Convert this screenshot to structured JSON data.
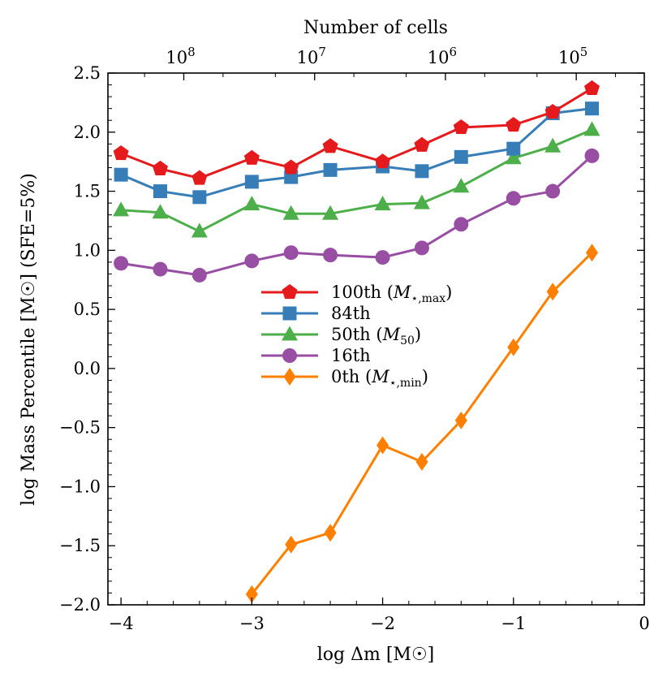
{
  "chart_data": {
    "type": "line",
    "title": "",
    "xlabel": "log Δm [M☉]",
    "ylabel": "log Mass Percentile [M☉] (SFE=5%)",
    "top_xlabel": "Number of cells",
    "xlim": [
      -4.1,
      0
    ],
    "ylim": [
      -2.0,
      2.5
    ],
    "x_ticks": [
      -4,
      -3,
      -2,
      -1,
      0
    ],
    "x_tick_labels": [
      "−4",
      "−3",
      "−2",
      "−1",
      "0"
    ],
    "y_ticks": [
      -2.0,
      -1.5,
      -1.0,
      -0.5,
      0.0,
      0.5,
      1.0,
      1.5,
      2.0,
      2.5
    ],
    "y_tick_labels": [
      "−2.0",
      "−1.5",
      "−1.0",
      "−0.5",
      "0.0",
      "0.5",
      "1.0",
      "1.5",
      "2.0",
      "2.5"
    ],
    "top_ticks": [
      {
        "x": -3.52,
        "base": "10",
        "exp": "8"
      },
      {
        "x": -2.52,
        "base": "10",
        "exp": "7"
      },
      {
        "x": -1.52,
        "base": "10",
        "exp": "6"
      },
      {
        "x": -0.52,
        "base": "10",
        "exp": "5"
      }
    ],
    "top_minor_ticks": [
      -3.82,
      -3.22,
      -2.82,
      -2.22,
      -1.82,
      -1.22,
      -0.82,
      -0.22
    ],
    "x": [
      -4.0,
      -3.7,
      -3.4,
      -3.0,
      -2.7,
      -2.4,
      -2.0,
      -1.7,
      -1.4,
      -1.0,
      -0.7,
      -0.4
    ],
    "series": [
      {
        "name": "100th (M⋆,max)",
        "legend": {
          "main": "100th (",
          "math": "M",
          "sub": "⋆,max",
          "close": ")"
        },
        "color": "#e41a1c",
        "marker": "pentagon",
        "values": [
          1.82,
          1.69,
          1.61,
          1.78,
          1.7,
          1.88,
          1.75,
          1.89,
          2.04,
          2.06,
          2.17,
          2.37
        ]
      },
      {
        "name": "84th",
        "legend": {
          "main": "84th",
          "math": "",
          "sub": "",
          "close": ""
        },
        "color": "#377eb8",
        "marker": "square",
        "values": [
          1.64,
          1.5,
          1.45,
          1.58,
          1.62,
          1.68,
          1.71,
          1.67,
          1.79,
          1.86,
          2.16,
          2.2
        ]
      },
      {
        "name": "50th (M50)",
        "legend": {
          "main": "50th (",
          "math": "M",
          "sub": "50",
          "close": ")"
        },
        "color": "#4daf4a",
        "marker": "triangle",
        "values": [
          1.34,
          1.32,
          1.16,
          1.39,
          1.31,
          1.31,
          1.39,
          1.4,
          1.54,
          1.78,
          1.88,
          2.02
        ]
      },
      {
        "name": "16th",
        "legend": {
          "main": "16th",
          "math": "",
          "sub": "",
          "close": ""
        },
        "color": "#984ea3",
        "marker": "circle",
        "values": [
          0.89,
          0.84,
          0.79,
          0.91,
          0.98,
          0.96,
          0.94,
          1.02,
          1.22,
          1.44,
          1.5,
          1.8
        ]
      },
      {
        "name": "0th (M⋆,min)",
        "legend": {
          "main": "0th (",
          "math": "M",
          "sub": "⋆,min",
          "close": ")"
        },
        "color": "#ff7f00",
        "marker": "diamond",
        "values": [
          null,
          null,
          null,
          -1.91,
          -1.49,
          -1.39,
          -0.65,
          -0.79,
          -0.44,
          0.18,
          0.65,
          0.98
        ]
      }
    ],
    "legend_position": "center"
  }
}
